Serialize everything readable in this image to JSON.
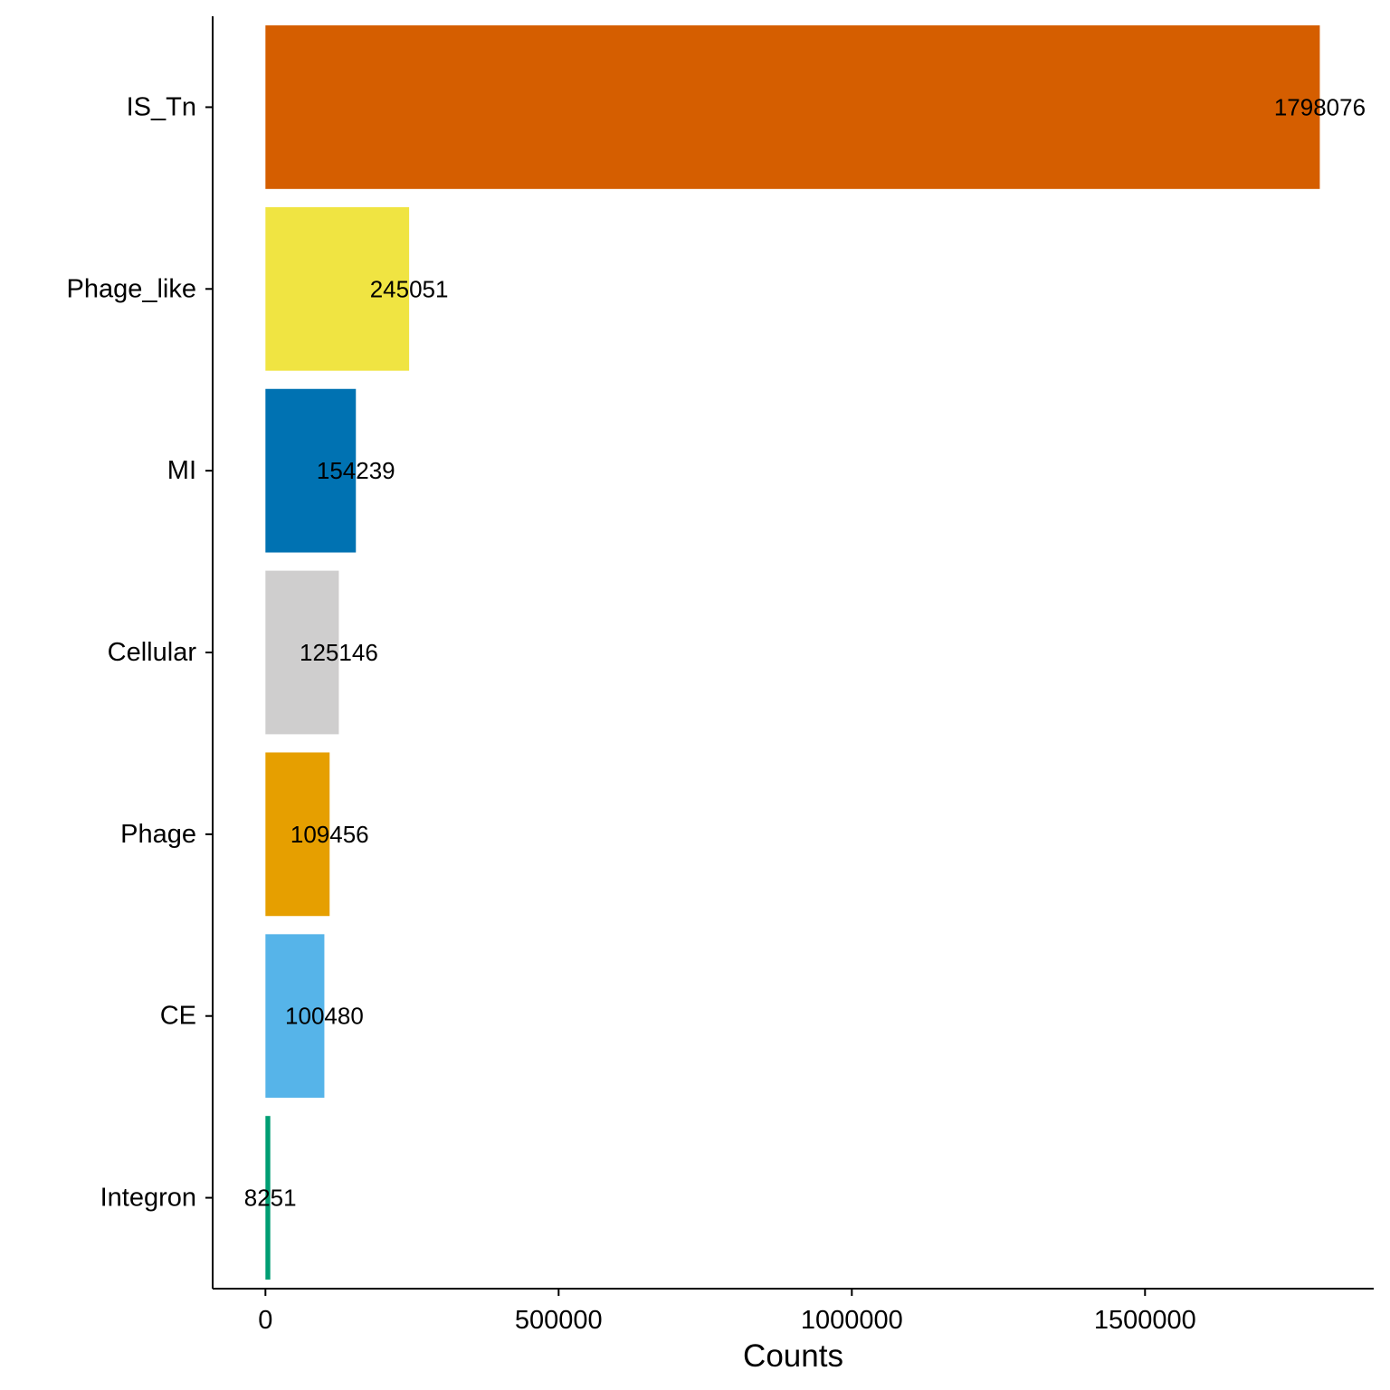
{
  "chart_data": {
    "type": "bar",
    "orientation": "horizontal",
    "categories": [
      "IS_Tn",
      "Phage_like",
      "MI",
      "Cellular",
      "Phage",
      "CE",
      "Integron"
    ],
    "values": [
      1798076,
      245051,
      154239,
      125146,
      109456,
      100480,
      8251
    ],
    "data_labels": [
      "1798076",
      "245051",
      "154239",
      "125146",
      "109456",
      "100480",
      "8251"
    ],
    "colors": [
      "#D55E00",
      "#F0E442",
      "#0072B2",
      "#CFCECE",
      "#E69F00",
      "#56B4E9",
      "#009E73"
    ],
    "xlabel": "Counts",
    "ylabel": "",
    "xlim": [
      -90000,
      1890000
    ],
    "xticks": [
      0,
      500000,
      1000000,
      1500000
    ],
    "xtick_labels": [
      "0",
      "500000",
      "1000000",
      "1500000"
    ],
    "grid": false,
    "legend": "none"
  }
}
